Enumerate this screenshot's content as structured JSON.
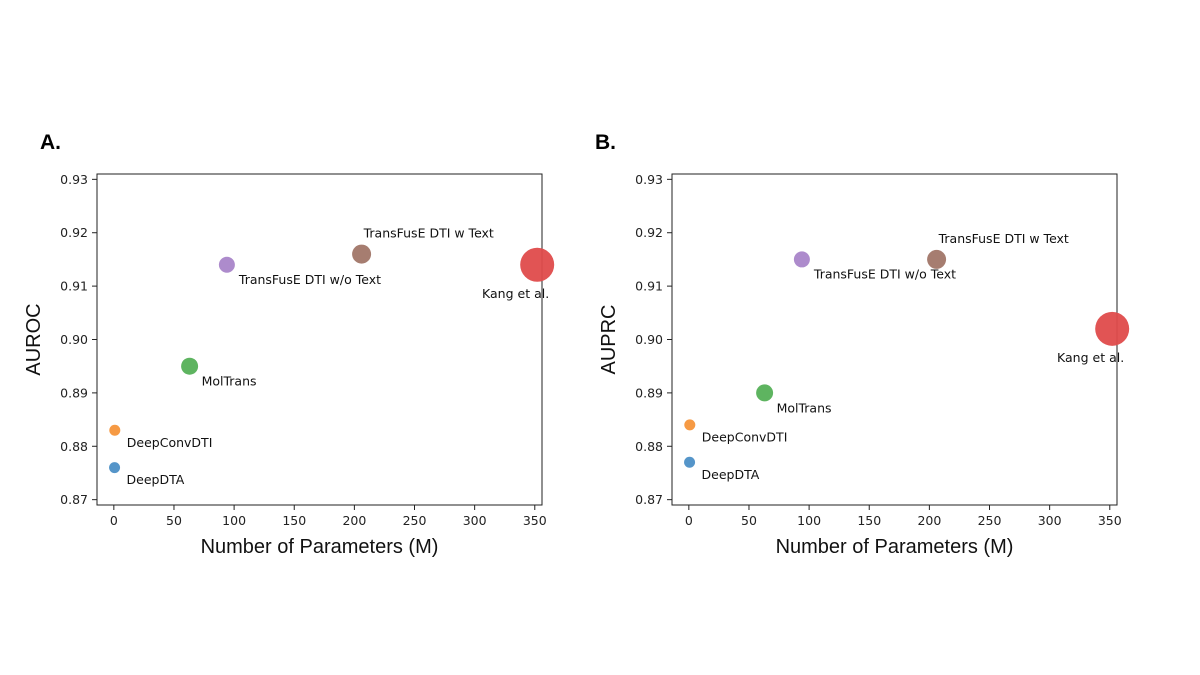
{
  "chart_data": [
    {
      "type": "scatter",
      "panel_label": "A.",
      "xlabel": "Number of Parameters (M)",
      "ylabel": "AUROC",
      "xlim": [
        -14,
        356
      ],
      "ylim": [
        0.869,
        0.931
      ],
      "xticks": [
        0,
        50,
        100,
        150,
        200,
        250,
        300,
        350
      ],
      "yticks": [
        0.87,
        0.88,
        0.89,
        0.9,
        0.91,
        0.92,
        0.93
      ],
      "ytick_labels": [
        "0.87",
        "0.88",
        "0.89",
        "0.90",
        "0.91",
        "0.92",
        "0.93"
      ],
      "grid": false,
      "points": [
        {
          "name": "DeepDTA",
          "x": 0.6,
          "y": 0.876,
          "color": "#4c8fc6",
          "label_pos": "below-right"
        },
        {
          "name": "DeepConvDTI",
          "x": 0.8,
          "y": 0.883,
          "color": "#f5953a",
          "label_pos": "below-right"
        },
        {
          "name": "MolTrans",
          "x": 63,
          "y": 0.895,
          "color": "#55b057",
          "label_pos": "below-right"
        },
        {
          "name": "TransFusE DTI w/o Text",
          "x": 94,
          "y": 0.914,
          "color": "#a985c9",
          "label_pos": "below-right"
        },
        {
          "name": "TransFusE DTI w Text",
          "x": 206,
          "y": 0.916,
          "color": "#a17668",
          "label_pos": "above-right"
        },
        {
          "name": "Kang et al.",
          "x": 352,
          "y": 0.914,
          "color": "#df4b4b",
          "label_pos": "below-left"
        }
      ]
    },
    {
      "type": "scatter",
      "panel_label": "B.",
      "xlabel": "Number of Parameters (M)",
      "ylabel": "AUPRC",
      "xlim": [
        -14,
        356
      ],
      "ylim": [
        0.869,
        0.931
      ],
      "xticks": [
        0,
        50,
        100,
        150,
        200,
        250,
        300,
        350
      ],
      "yticks": [
        0.87,
        0.88,
        0.89,
        0.9,
        0.91,
        0.92,
        0.93
      ],
      "ytick_labels": [
        "0.87",
        "0.88",
        "0.89",
        "0.90",
        "0.91",
        "0.92",
        "0.93"
      ],
      "grid": false,
      "points": [
        {
          "name": "DeepDTA",
          "x": 0.6,
          "y": 0.877,
          "color": "#4c8fc6",
          "label_pos": "below-right"
        },
        {
          "name": "DeepConvDTI",
          "x": 0.8,
          "y": 0.884,
          "color": "#f5953a",
          "label_pos": "below-right"
        },
        {
          "name": "MolTrans",
          "x": 63,
          "y": 0.89,
          "color": "#55b057",
          "label_pos": "below-right"
        },
        {
          "name": "TransFusE DTI w/o Text",
          "x": 94,
          "y": 0.915,
          "color": "#a985c9",
          "label_pos": "below-right"
        },
        {
          "name": "TransFusE DTI w Text",
          "x": 206,
          "y": 0.915,
          "color": "#a17668",
          "label_pos": "above-right"
        },
        {
          "name": "Kang et al.",
          "x": 352,
          "y": 0.902,
          "color": "#df4b4b",
          "label_pos": "below-left"
        }
      ]
    }
  ]
}
